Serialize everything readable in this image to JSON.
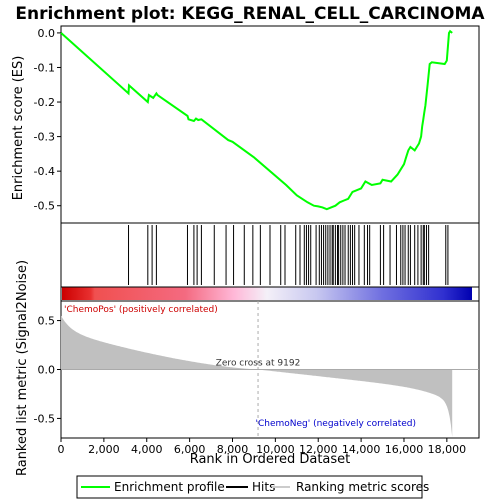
{
  "chart_data": {
    "type": "line",
    "title": "Enrichment plot: KEGG_RENAL_CELL_CARCINOMA",
    "top_panel": {
      "ylabel": "Enrichment score (ES)",
      "ylim": [
        -0.55,
        0.02
      ],
      "yticks": [
        "0.0",
        "-0.1",
        "-0.2",
        "-0.3",
        "-0.4",
        "-0.5"
      ],
      "ytick_values": [
        0.0,
        -0.1,
        -0.2,
        -0.3,
        -0.4,
        -0.5
      ],
      "series": {
        "name": "Enrichment profile",
        "color": "#00ff00",
        "x": [
          0,
          3150,
          3170,
          4050,
          4100,
          4300,
          4450,
          4500,
          5900,
          5950,
          6200,
          6300,
          6400,
          6550,
          7800,
          8000,
          9000,
          10500,
          11000,
          11500,
          11800,
          12000,
          12200,
          12400,
          12600,
          12800,
          13000,
          13200,
          13400,
          13600,
          13800,
          14000,
          14200,
          14500,
          14900,
          15000,
          15400,
          15700,
          15900,
          16000,
          16100,
          16200,
          16300,
          16500,
          16700,
          16800,
          16850,
          16900,
          16950,
          17000,
          17100,
          17200,
          17300,
          17900,
          18000,
          18100,
          18150,
          18250
        ],
        "y": [
          0.0,
          -0.175,
          -0.152,
          -0.2,
          -0.18,
          -0.188,
          -0.175,
          -0.18,
          -0.24,
          -0.25,
          -0.255,
          -0.248,
          -0.252,
          -0.25,
          -0.31,
          -0.315,
          -0.36,
          -0.44,
          -0.47,
          -0.49,
          -0.5,
          -0.502,
          -0.505,
          -0.51,
          -0.505,
          -0.5,
          -0.49,
          -0.485,
          -0.48,
          -0.46,
          -0.455,
          -0.45,
          -0.43,
          -0.44,
          -0.435,
          -0.425,
          -0.43,
          -0.41,
          -0.39,
          -0.38,
          -0.36,
          -0.34,
          -0.33,
          -0.34,
          -0.32,
          -0.3,
          -0.27,
          -0.25,
          -0.23,
          -0.21,
          -0.15,
          -0.09,
          -0.085,
          -0.09,
          -0.08,
          0.0,
          0.005,
          0.0
        ]
      }
    },
    "hits": {
      "name": "Hits",
      "positions": [
        3150,
        4050,
        4250,
        4450,
        5900,
        6200,
        6350,
        6550,
        7150,
        7700,
        8050,
        8550,
        8950,
        9300,
        9750,
        10250,
        10450,
        10950,
        11150,
        11350,
        11450,
        11550,
        11650,
        11900,
        12050,
        12150,
        12250,
        12350,
        12450,
        12550,
        12650,
        12700,
        12800,
        12900,
        12950,
        13050,
        13150,
        13250,
        13400,
        13500,
        13600,
        13700,
        13900,
        14150,
        14300,
        14400,
        14900,
        15050,
        15350,
        15650,
        15850,
        15950,
        16050,
        16200,
        16300,
        16500,
        16650,
        16800,
        16900,
        16950,
        17050,
        17150,
        17950,
        18050
      ]
    },
    "ranked_panel": {
      "ylabel": "Ranked list metric (Signal2Noise)",
      "ylim": [
        -0.7,
        0.7
      ],
      "yticks": [
        "0.5",
        "0.0",
        "-0.5"
      ],
      "ytick_values": [
        0.5,
        0.0,
        -0.5
      ],
      "name": "Ranking metric scores",
      "zero_cross": 9192,
      "zero_cross_label": "Zero cross at 9192",
      "pos_label": "'ChemoPos' (positively correlated)",
      "neg_label": "'ChemoNeg' (negatively correlated)"
    },
    "xlabel": "Rank in Ordered Dataset",
    "xlim": [
      0,
      19500
    ],
    "xtick_values": [
      0,
      2000,
      4000,
      6000,
      8000,
      10000,
      12000,
      14000,
      16000,
      18000
    ],
    "xticks": [
      "0",
      "2,000",
      "4,000",
      "6,000",
      "8,000",
      "10,000",
      "12,000",
      "14,000",
      "16,000",
      "18,000"
    ],
    "n_genes": 18250,
    "legend": {
      "placement": "bottom",
      "items": [
        "Enrichment profile",
        "Hits",
        "Ranking metric scores"
      ]
    },
    "colors": {
      "profile": "#00ff00",
      "pos_text": "#cc0000",
      "neg_text": "#0000cc",
      "metric_fill": "#c0c0c0",
      "zero_line": "#999999"
    }
  }
}
